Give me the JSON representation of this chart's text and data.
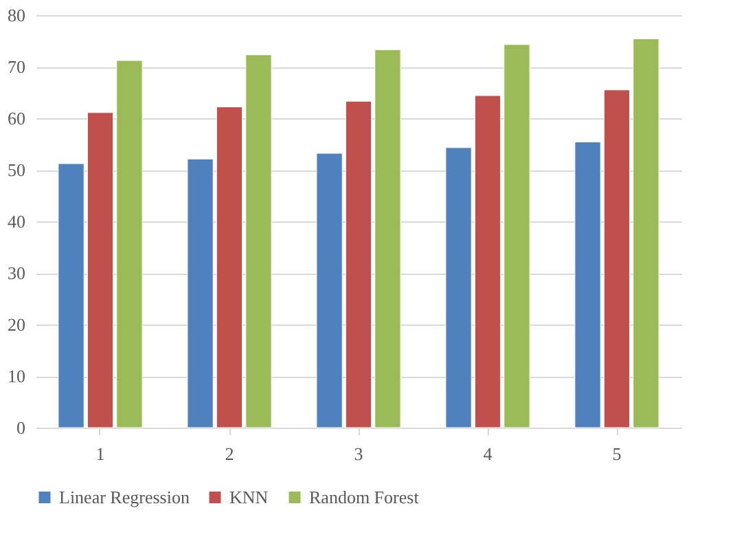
{
  "chart_data": {
    "type": "bar",
    "categories": [
      "1",
      "2",
      "3",
      "4",
      "5"
    ],
    "series": [
      {
        "name": "Linear Regression",
        "color": "#4f81bd",
        "values": [
          51.2,
          52.1,
          53.2,
          54.3,
          55.4
        ]
      },
      {
        "name": "KNN",
        "color": "#c0504d",
        "values": [
          61.1,
          62.2,
          63.3,
          64.4,
          65.5
        ]
      },
      {
        "name": "Random Forest",
        "color": "#9bbb59",
        "values": [
          71.2,
          72.3,
          73.3,
          74.3,
          75.4
        ]
      }
    ],
    "ylim": [
      0,
      80
    ],
    "yticks": [
      0,
      10,
      20,
      30,
      40,
      50,
      60,
      70,
      80
    ],
    "grid": "y",
    "legend": "bottom"
  }
}
